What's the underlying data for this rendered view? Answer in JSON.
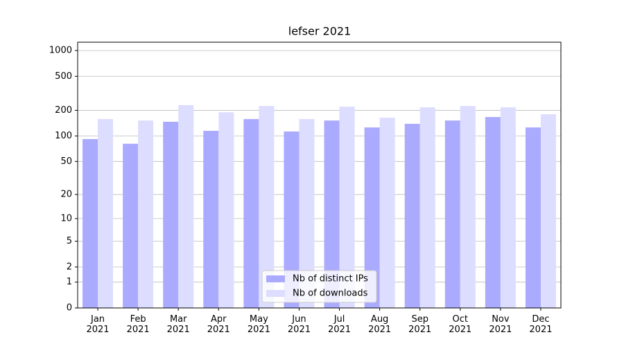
{
  "chart_data": {
    "type": "bar",
    "title": "lefser 2021",
    "yscale": "log1p",
    "categories": [
      "Jan 2021",
      "Feb 2021",
      "Mar 2021",
      "Apr 2021",
      "May 2021",
      "Jun 2021",
      "Jul 2021",
      "Aug 2021",
      "Sep 2021",
      "Oct 2021",
      "Nov 2021",
      "Dec 2021"
    ],
    "series": [
      {
        "name": "Nb of distinct IPs",
        "color": "#aaaaff",
        "values": [
          92,
          81,
          147,
          115,
          158,
          113,
          152,
          126,
          139,
          152,
          167,
          126
        ]
      },
      {
        "name": "Nb of downloads",
        "color": "#ddddff",
        "values": [
          158,
          152,
          230,
          190,
          225,
          158,
          221,
          164,
          217,
          225,
          217,
          180
        ]
      }
    ],
    "ylim": [
      0,
      1250
    ],
    "yticks": [
      0,
      1,
      2,
      5,
      10,
      20,
      50,
      100,
      200,
      500,
      1000
    ],
    "grid": true,
    "legend": "lower center"
  }
}
